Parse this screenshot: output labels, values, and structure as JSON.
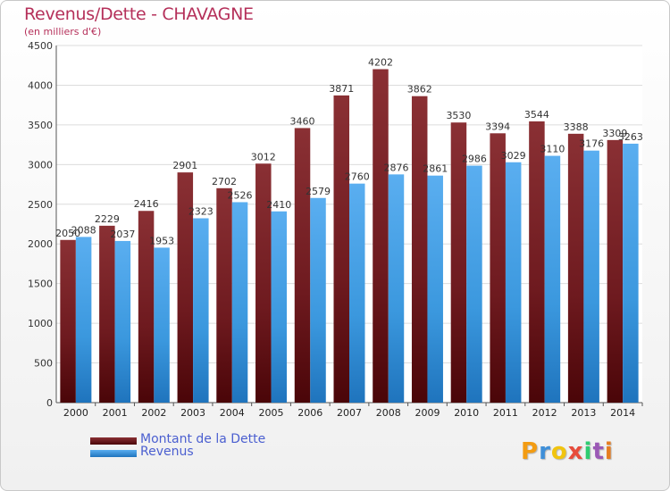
{
  "chart_data": {
    "type": "bar",
    "title": "Revenus/Dette - CHAVAGNE",
    "subtitle": "(en milliers d'€)",
    "categories": [
      "2000",
      "2001",
      "2002",
      "2003",
      "2004",
      "2005",
      "2006",
      "2007",
      "2008",
      "2009",
      "2010",
      "2011",
      "2012",
      "2013",
      "2014"
    ],
    "series": [
      {
        "name": "Montant de la Dette",
        "color": "#7a1f24",
        "values": [
          2050,
          2229,
          2416,
          2901,
          2702,
          3012,
          3460,
          3871,
          4202,
          3862,
          3530,
          3394,
          3544,
          3388,
          3309
        ]
      },
      {
        "name": "Revenus",
        "color": "#3d9be0",
        "values": [
          2088,
          2037,
          1953,
          2323,
          2526,
          2410,
          2579,
          2760,
          2876,
          2861,
          2986,
          3029,
          3110,
          3176,
          3263
        ]
      }
    ],
    "ylim": [
      0,
      4500
    ],
    "yticks": [
      0,
      500,
      1000,
      1500,
      2000,
      2500,
      3000,
      3500,
      4000,
      4500
    ],
    "xlabel": "",
    "ylabel": "",
    "grid": true,
    "legend_position": "bottom-left"
  },
  "logo": {
    "text": "Proxiti",
    "letters": [
      "P",
      "r",
      "o",
      "x",
      "i",
      "t",
      "i"
    ]
  }
}
